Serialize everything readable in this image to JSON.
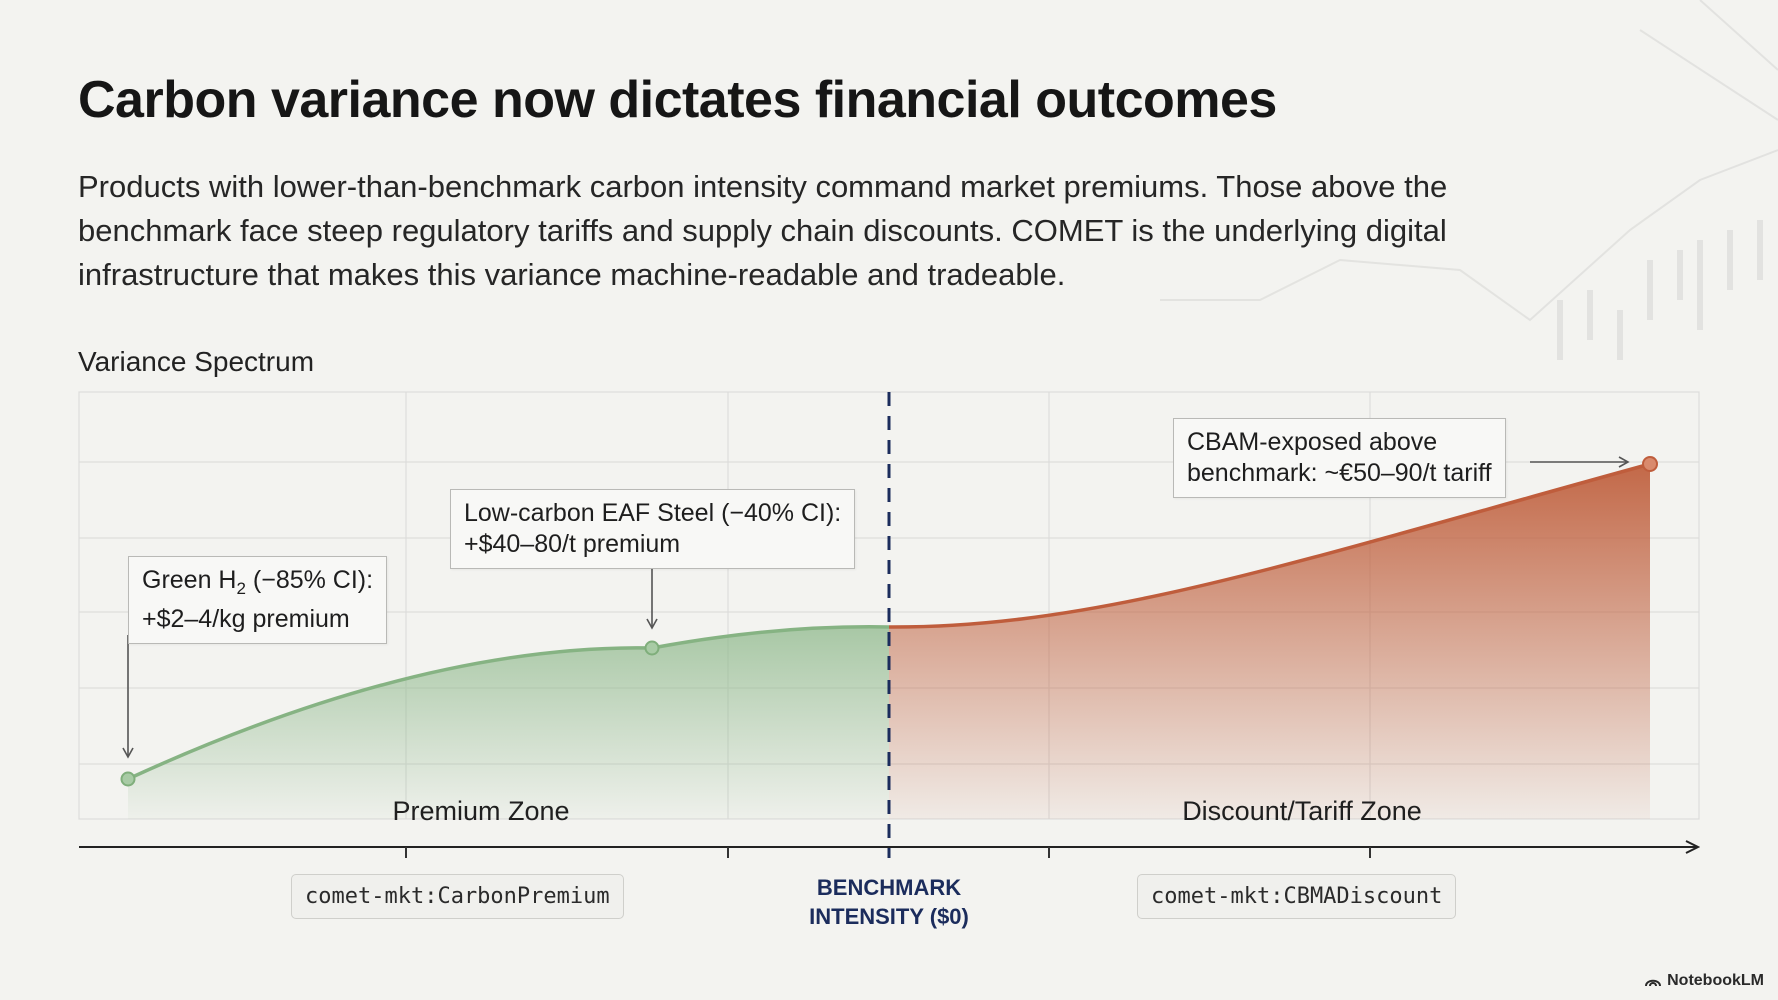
{
  "title": "Carbon variance now dictates financial outcomes",
  "subtitle": "Products with lower-than-benchmark carbon intensity command market premiums. Those above the benchmark face steep regulatory tariffs and supply chain discounts. COMET is the underlying digital infrastructure that makes this variance machine-readable and tradeable.",
  "diagram": {
    "section_label": "Variance Spectrum",
    "callouts": {
      "green_h2_line1_prefix": "Green H",
      "green_h2_line1_sub": "2",
      "green_h2_line1_suffix": " (−85% CI):",
      "green_h2_line2": "+$2–4/kg premium",
      "eaf_steel_line1": "Low-carbon EAF Steel (−40% CI):",
      "eaf_steel_line2": "+$40–80/t premium",
      "cbam_line1": "CBAM-exposed above",
      "cbam_line2": "benchmark: ~€50–90/t tariff"
    },
    "zones": {
      "premium": "Premium Zone",
      "discount": "Discount/Tariff Zone"
    },
    "codes": {
      "premium": "comet-mkt:CarbonPremium",
      "discount": "comet-mkt:CBMADiscount"
    },
    "benchmark_line1": "BENCHMARK",
    "benchmark_line2": "INTENSITY ($0)"
  },
  "colors": {
    "premium_green": "#8fb98c",
    "discount_red": "#c0613f",
    "benchmark_navy": "#1b2c5c"
  },
  "brand": "NotebookLM"
}
